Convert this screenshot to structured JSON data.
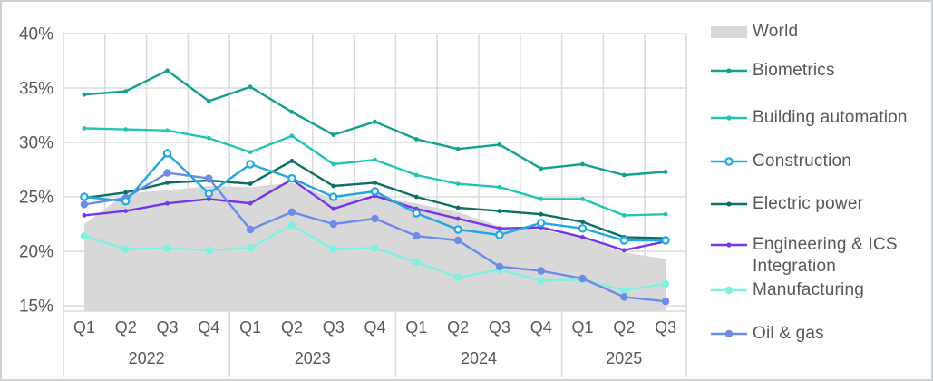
{
  "chart_data": {
    "type": "area",
    "title": "",
    "x_quarter_labels": [
      "Q1",
      "Q2",
      "Q3",
      "Q4",
      "Q1",
      "Q2",
      "Q3",
      "Q4",
      "Q1",
      "Q2",
      "Q3",
      "Q4",
      "Q1",
      "Q2",
      "Q3"
    ],
    "year_groups": [
      {
        "label": "2022",
        "quarters": 4
      },
      {
        "label": "2023",
        "quarters": 4
      },
      {
        "label": "2024",
        "quarters": 4
      },
      {
        "label": "2025",
        "quarters": 3
      }
    ],
    "y_ticks": [
      {
        "value": 40,
        "label": "40%"
      },
      {
        "value": 35,
        "label": "35%"
      },
      {
        "value": 30,
        "label": "30%"
      },
      {
        "value": 25,
        "label": "25%"
      },
      {
        "value": 20,
        "label": "20%"
      },
      {
        "value": 15,
        "label": "15%"
      }
    ],
    "ylim": [
      15,
      40
    ],
    "grid": true,
    "legend_position": "right",
    "series": [
      {
        "name": "World",
        "type": "area",
        "marker": "none",
        "color": "#d8d8d8",
        "values": [
          22.5,
          25.3,
          25.6,
          26.0,
          25.9,
          26.3,
          24.8,
          25.0,
          24.4,
          23.6,
          22.3,
          22.0,
          21.2,
          19.9,
          19.3
        ]
      },
      {
        "name": "Biometrics",
        "type": "line",
        "marker": "dot",
        "color": "#12a18f",
        "values": [
          34.4,
          34.7,
          36.6,
          33.8,
          35.1,
          32.8,
          30.7,
          31.9,
          30.3,
          29.4,
          29.8,
          27.6,
          28.0,
          27.0,
          27.3
        ]
      },
      {
        "name": "Building automation",
        "type": "line",
        "marker": "dot",
        "color": "#21c5b6",
        "values": [
          31.3,
          31.2,
          31.1,
          30.4,
          29.1,
          30.6,
          28.0,
          28.4,
          27.0,
          26.2,
          25.9,
          24.8,
          24.8,
          23.3,
          23.4
        ]
      },
      {
        "name": "Construction",
        "type": "line",
        "marker": "circle-open",
        "color": "#22a7e0",
        "values": [
          25.0,
          24.6,
          29.0,
          25.3,
          28.0,
          26.7,
          25.0,
          25.5,
          23.5,
          22.0,
          21.5,
          22.6,
          22.1,
          21.0,
          21.0
        ]
      },
      {
        "name": "Electric power",
        "type": "line",
        "marker": "dot",
        "color": "#0e6f63",
        "values": [
          24.9,
          25.4,
          26.3,
          26.5,
          26.2,
          28.3,
          26.0,
          26.3,
          25.0,
          24.0,
          23.7,
          23.4,
          22.7,
          21.3,
          21.2
        ]
      },
      {
        "name": "Engineering & ICS Integration",
        "type": "line",
        "marker": "dot",
        "color": "#7636e8",
        "values": [
          23.3,
          23.7,
          24.4,
          24.8,
          24.4,
          26.6,
          23.9,
          25.1,
          23.9,
          23.0,
          22.1,
          22.2,
          21.3,
          20.1,
          20.9
        ]
      },
      {
        "name": "Manufacturing",
        "type": "line",
        "marker": "dot-large",
        "color": "#7ff1e3",
        "values": [
          21.4,
          20.2,
          20.3,
          20.1,
          20.3,
          22.4,
          20.2,
          20.3,
          19.0,
          17.6,
          18.3,
          17.3,
          17.4,
          16.4,
          17.0
        ]
      },
      {
        "name": "Oil & gas",
        "type": "line",
        "marker": "dot-large",
        "color": "#6d8ce8",
        "values": [
          24.3,
          24.9,
          27.2,
          26.7,
          22.0,
          23.6,
          22.5,
          23.0,
          21.4,
          21.0,
          18.6,
          18.2,
          17.5,
          15.8,
          15.4
        ]
      }
    ]
  },
  "style": {
    "grid_color": "#dcdcdc",
    "axis_text_color": "#55585c",
    "background": "#ffffff"
  }
}
